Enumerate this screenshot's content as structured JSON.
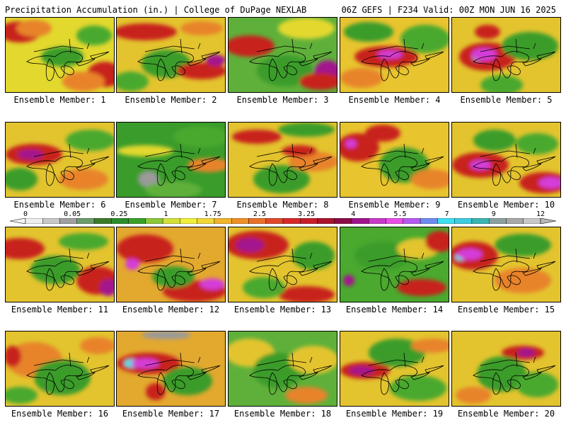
{
  "header": {
    "left_title": "Precipitation Accumulation (in.) | College of DuPage NEXLAB",
    "right_title": "06Z GEFS | F234 Valid: 00Z MON JUN 16 2025"
  },
  "caption_prefix": "Ensemble Member: ",
  "members": [
    {
      "label": "Ensemble Member: 1",
      "base": "#e3d82e",
      "blobs": [
        [
          "#c8201e",
          20,
          20,
          30,
          15
        ],
        [
          "#e8832a",
          40,
          15,
          25,
          12
        ],
        [
          "#c8201e",
          140,
          80,
          25,
          18
        ],
        [
          "#3a9c2a",
          80,
          55,
          30,
          14
        ],
        [
          "#4aa92e",
          125,
          25,
          25,
          14
        ],
        [
          "#e8832a",
          110,
          90,
          30,
          14
        ]
      ]
    },
    {
      "label": "Ensemble Member: 2",
      "base": "#e3c42e",
      "blobs": [
        [
          "#c8201e",
          40,
          20,
          45,
          12
        ],
        [
          "#3a9c2a",
          70,
          65,
          35,
          20
        ],
        [
          "#c8201e",
          120,
          75,
          35,
          12
        ],
        [
          "#a3168e",
          140,
          60,
          14,
          8
        ],
        [
          "#4aa92e",
          20,
          90,
          25,
          14
        ],
        [
          "#e8832a",
          120,
          15,
          30,
          10
        ]
      ]
    },
    {
      "label": "Ensemble Member: 3",
      "base": "#5fb03a",
      "blobs": [
        [
          "#c83a8e",
          40,
          35,
          20,
          8
        ],
        [
          "#c8201e",
          30,
          40,
          35,
          15
        ],
        [
          "#e3d82e",
          110,
          15,
          40,
          15
        ],
        [
          "#3a9c2a",
          80,
          75,
          40,
          22
        ],
        [
          "#a3168e",
          140,
          80,
          20,
          20
        ],
        [
          "#c8201e",
          130,
          90,
          30,
          12
        ]
      ]
    },
    {
      "label": "Ensemble Member: 4",
      "base": "#e8c42e",
      "blobs": [
        [
          "#c8201e",
          65,
          55,
          45,
          15
        ],
        [
          "#d43ed8",
          70,
          52,
          18,
          6
        ],
        [
          "#3a9c2a",
          40,
          20,
          35,
          14
        ],
        [
          "#4aa92e",
          120,
          30,
          35,
          20
        ],
        [
          "#e8832a",
          30,
          85,
          30,
          14
        ]
      ]
    },
    {
      "label": "Ensemble Member: 5",
      "base": "#e3c42e",
      "blobs": [
        [
          "#c8201e",
          50,
          55,
          40,
          20
        ],
        [
          "#3ee0e8",
          38,
          55,
          10,
          6
        ],
        [
          "#d43ed8",
          45,
          52,
          18,
          9
        ],
        [
          "#c8201e",
          50,
          20,
          18,
          10
        ],
        [
          "#3a9c2a",
          110,
          40,
          40,
          20
        ],
        [
          "#4aa92e",
          70,
          95,
          30,
          14
        ]
      ]
    },
    {
      "label": "Ensemble Member: 6",
      "base": "#e3c42e",
      "blobs": [
        [
          "#c8201e",
          40,
          45,
          40,
          15
        ],
        [
          "#a3168e",
          35,
          45,
          18,
          7
        ],
        [
          "#3a9c2a",
          20,
          80,
          25,
          16
        ],
        [
          "#4aa92e",
          120,
          25,
          35,
          15
        ],
        [
          "#e8832a",
          110,
          80,
          35,
          15
        ]
      ]
    },
    {
      "label": "Ensemble Member: 7",
      "base": "#3a9c2a",
      "blobs": [
        [
          "#4aa92e",
          120,
          20,
          40,
          15
        ],
        [
          "#9a9a9a",
          45,
          80,
          15,
          12
        ],
        [
          "#e3d82e",
          40,
          40,
          40,
          8
        ],
        [
          "#e8832a",
          130,
          60,
          30,
          10
        ],
        [
          "#5fb03a",
          80,
          95,
          40,
          12
        ]
      ]
    },
    {
      "label": "Ensemble Member: 8",
      "base": "#e3c42e",
      "blobs": [
        [
          "#c8201e",
          40,
          20,
          35,
          10
        ],
        [
          "#3a9c2a",
          110,
          10,
          40,
          10
        ],
        [
          "#3a9c2a",
          75,
          80,
          40,
          20
        ],
        [
          "#e8832a",
          120,
          55,
          35,
          14
        ],
        [
          "#c8201e",
          100,
          40,
          25,
          8
        ]
      ]
    },
    {
      "label": "Ensemble Member: 9",
      "base": "#e8c42e",
      "blobs": [
        [
          "#c8201e",
          25,
          35,
          30,
          20
        ],
        [
          "#d43ed8",
          15,
          30,
          8,
          6
        ],
        [
          "#c8201e",
          60,
          15,
          25,
          12
        ],
        [
          "#3a9c2a",
          90,
          60,
          35,
          25
        ],
        [
          "#e8832a",
          130,
          80,
          30,
          14
        ]
      ]
    },
    {
      "label": "Ensemble Member: 10",
      "base": "#e3c42e",
      "blobs": [
        [
          "#c8201e",
          40,
          60,
          40,
          18
        ],
        [
          "#d43ed8",
          40,
          60,
          15,
          7
        ],
        [
          "#c8201e",
          130,
          85,
          35,
          15
        ],
        [
          "#d43ed8",
          140,
          85,
          18,
          8
        ],
        [
          "#3a9c2a",
          60,
          25,
          30,
          15
        ],
        [
          "#4aa92e",
          120,
          30,
          30,
          15
        ]
      ]
    },
    {
      "label": "Ensemble Member: 11",
      "base": "#e3c42e",
      "blobs": [
        [
          "#c8201e",
          20,
          30,
          35,
          15
        ],
        [
          "#c8201e",
          130,
          75,
          30,
          20
        ],
        [
          "#a3168e",
          145,
          85,
          12,
          12
        ],
        [
          "#3a9c2a",
          70,
          60,
          35,
          20
        ],
        [
          "#4aa92e",
          110,
          20,
          35,
          12
        ]
      ]
    },
    {
      "label": "Ensemble Member: 12",
      "base": "#e3a82e",
      "blobs": [
        [
          "#c8201e",
          40,
          30,
          40,
          20
        ],
        [
          "#d43ed8",
          22,
          52,
          10,
          8
        ],
        [
          "#c8201e",
          110,
          90,
          45,
          15
        ],
        [
          "#d43ed8",
          135,
          80,
          18,
          8
        ],
        [
          "#3a9c2a",
          80,
          70,
          30,
          15
        ]
      ]
    },
    {
      "label": "Ensemble Member: 13",
      "base": "#e3c42e",
      "blobs": [
        [
          "#c8201e",
          40,
          25,
          45,
          20
        ],
        [
          "#a3168e",
          30,
          25,
          20,
          10
        ],
        [
          "#c8201e",
          110,
          95,
          40,
          12
        ],
        [
          "#3a9c2a",
          120,
          40,
          30,
          20
        ],
        [
          "#4aa92e",
          50,
          85,
          30,
          15
        ]
      ]
    },
    {
      "label": "Ensemble Member: 14",
      "base": "#4aa92e",
      "blobs": [
        [
          "#3a9c2a",
          60,
          40,
          40,
          20
        ],
        [
          "#e3c42e",
          110,
          30,
          30,
          15
        ],
        [
          "#c8201e",
          140,
          20,
          20,
          15
        ],
        [
          "#c8201e",
          115,
          85,
          35,
          12
        ],
        [
          "#a3168e",
          12,
          75,
          8,
          8
        ]
      ]
    },
    {
      "label": "Ensemble Member: 15",
      "base": "#e3c42e",
      "blobs": [
        [
          "#c8201e",
          30,
          40,
          35,
          20
        ],
        [
          "#3ee0e8",
          12,
          42,
          8,
          5
        ],
        [
          "#d43ed8",
          25,
          38,
          18,
          8
        ],
        [
          "#3a9c2a",
          100,
          25,
          40,
          16
        ],
        [
          "#e8832a",
          100,
          75,
          40,
          18
        ]
      ]
    },
    {
      "label": "Ensemble Member: 16",
      "base": "#e3c42e",
      "blobs": [
        [
          "#e8832a",
          40,
          40,
          40,
          25
        ],
        [
          "#c8201e",
          10,
          35,
          12,
          15
        ],
        [
          "#3a9c2a",
          80,
          65,
          40,
          25
        ],
        [
          "#4aa92e",
          20,
          90,
          25,
          12
        ],
        [
          "#e8832a",
          130,
          20,
          25,
          12
        ]
      ]
    },
    {
      "label": "Ensemble Member: 17",
      "base": "#e3a82e",
      "blobs": [
        [
          "#9a9a9a",
          70,
          5,
          35,
          6
        ],
        [
          "#c8201e",
          45,
          45,
          45,
          15
        ],
        [
          "#3ee0e8",
          22,
          45,
          12,
          6
        ],
        [
          "#d43ed8",
          40,
          45,
          20,
          7
        ],
        [
          "#3a9c2a",
          100,
          70,
          35,
          20
        ],
        [
          "#c8201e",
          55,
          85,
          14,
          12
        ]
      ]
    },
    {
      "label": "Ensemble Member: 18",
      "base": "#5fb03a",
      "blobs": [
        [
          "#e3c42e",
          30,
          30,
          35,
          20
        ],
        [
          "#3a9c2a",
          70,
          55,
          35,
          25
        ],
        [
          "#e3c42e",
          120,
          40,
          35,
          20
        ],
        [
          "#e8832a",
          110,
          90,
          30,
          12
        ]
      ]
    },
    {
      "label": "Ensemble Member: 19",
      "base": "#e3c42e",
      "blobs": [
        [
          "#c8201e",
          35,
          55,
          35,
          12
        ],
        [
          "#a3168e",
          30,
          55,
          18,
          6
        ],
        [
          "#3a9c2a",
          80,
          30,
          40,
          20
        ],
        [
          "#4aa92e",
          110,
          80,
          40,
          18
        ],
        [
          "#e8832a",
          130,
          20,
          30,
          10
        ]
      ]
    },
    {
      "label": "Ensemble Member: 20",
      "base": "#e3c42e",
      "blobs": [
        [
          "#c8201e",
          100,
          30,
          30,
          10
        ],
        [
          "#a3168e",
          105,
          30,
          12,
          6
        ],
        [
          "#3a9c2a",
          70,
          60,
          35,
          25
        ],
        [
          "#4aa92e",
          120,
          75,
          30,
          18
        ],
        [
          "#e8832a",
          30,
          90,
          25,
          12
        ]
      ]
    }
  ],
  "colorbar": {
    "labels": [
      "0",
      "0.05",
      "0.25",
      "1",
      "1.75",
      "2.5",
      "3.25",
      "4",
      "5.5",
      "7",
      "9",
      "12"
    ],
    "colors": [
      "#eeeeee",
      "#c8c8c8",
      "#a0a0a0",
      "#6c9c6c",
      "#3a7a2a",
      "#2e8c2e",
      "#3aa02a",
      "#8cc83a",
      "#d4e03a",
      "#f0f03a",
      "#f0d83a",
      "#f0b42e",
      "#f0902a",
      "#e8702a",
      "#e0482a",
      "#d8282a",
      "#c81e2a",
      "#a8142a",
      "#8c0c4a",
      "#a0148c",
      "#c83ac8",
      "#e84ee8",
      "#b45af0",
      "#6e8cf0",
      "#3ee0f0",
      "#3ecce0",
      "#3ab4b4",
      "#8ca0a0",
      "#a8a8a8",
      "#c8c8c8"
    ]
  }
}
